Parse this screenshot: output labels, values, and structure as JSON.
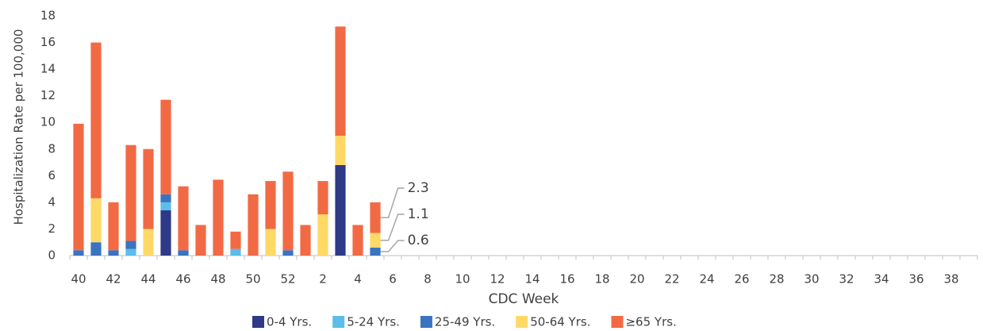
{
  "chart_data": {
    "type": "bar",
    "stacked": true,
    "y_label": "Hospitalization Rate per 100,000",
    "x_label": "CDC Week",
    "categories": [
      "40",
      null,
      "42",
      null,
      "44",
      null,
      "46",
      null,
      "48",
      null,
      "50",
      null,
      "52",
      null,
      "2",
      null,
      "4",
      null,
      "6",
      null,
      "8",
      null,
      "10",
      null,
      "12",
      null,
      "14",
      null,
      "16",
      null,
      "18",
      null,
      "20",
      null,
      "22",
      null,
      "24",
      null,
      "26",
      null,
      "28",
      null,
      "30",
      null,
      "32",
      null,
      "34",
      null,
      "36",
      null,
      "38",
      null
    ],
    "series": [
      {
        "name": "0-4 Yrs.",
        "color": "#2e3a87",
        "values": [
          0,
          0,
          0,
          0,
          0,
          3.4,
          0,
          0,
          0,
          0,
          0,
          0,
          0,
          0,
          0,
          6.8,
          0,
          0,
          null,
          null,
          null,
          null,
          null,
          null,
          null,
          null,
          null,
          null,
          null,
          null,
          null,
          null,
          null,
          null,
          null,
          null,
          null,
          null,
          null,
          null,
          null,
          null,
          null,
          null,
          null,
          null,
          null,
          null,
          null,
          null,
          null,
          null
        ]
      },
      {
        "name": "5-24 Yrs.",
        "color": "#5bbde8",
        "values": [
          0,
          0,
          0,
          0.5,
          0,
          0.6,
          0,
          0,
          0,
          0.5,
          0,
          0,
          0,
          0,
          0,
          0,
          0,
          0,
          null,
          null,
          null,
          null,
          null,
          null,
          null,
          null,
          null,
          null,
          null,
          null,
          null,
          null,
          null,
          null,
          null,
          null,
          null,
          null,
          null,
          null,
          null,
          null,
          null,
          null,
          null,
          null,
          null,
          null,
          null,
          null,
          null,
          null
        ]
      },
      {
        "name": "25-49 Yrs.",
        "color": "#3a73c0",
        "values": [
          0.4,
          1.0,
          0.4,
          0.6,
          0,
          0.6,
          0.4,
          0,
          0,
          0,
          0,
          0,
          0.4,
          0,
          0,
          0,
          0,
          0.6,
          null,
          null,
          null,
          null,
          null,
          null,
          null,
          null,
          null,
          null,
          null,
          null,
          null,
          null,
          null,
          null,
          null,
          null,
          null,
          null,
          null,
          null,
          null,
          null,
          null,
          null,
          null,
          null,
          null,
          null,
          null,
          null,
          null,
          null
        ]
      },
      {
        "name": "50-64 Yrs.",
        "color": "#ffd966",
        "values": [
          0,
          3.3,
          0,
          0,
          2.0,
          0,
          0,
          0,
          0,
          0,
          0,
          2.0,
          0,
          0,
          3.1,
          2.2,
          0,
          1.1,
          null,
          null,
          null,
          null,
          null,
          null,
          null,
          null,
          null,
          null,
          null,
          null,
          null,
          null,
          null,
          null,
          null,
          null,
          null,
          null,
          null,
          null,
          null,
          null,
          null,
          null,
          null,
          null,
          null,
          null,
          null,
          null,
          null,
          null
        ]
      },
      {
        "name": "≥65 Yrs.",
        "color": "#f26a44",
        "values": [
          9.5,
          11.7,
          3.6,
          7.2,
          6.0,
          7.1,
          4.8,
          2.3,
          5.7,
          1.3,
          4.6,
          3.6,
          5.9,
          2.3,
          2.5,
          8.2,
          2.3,
          2.3,
          null,
          null,
          null,
          null,
          null,
          null,
          null,
          null,
          null,
          null,
          null,
          null,
          null,
          null,
          null,
          null,
          null,
          null,
          null,
          null,
          null,
          null,
          null,
          null,
          null,
          null,
          null,
          null,
          null,
          null,
          null,
          null,
          null,
          null
        ]
      }
    ],
    "ylim": [
      0,
      18
    ],
    "yticks": [
      0,
      2,
      4,
      6,
      8,
      10,
      12,
      14,
      16,
      18
    ],
    "grid": false
  }
}
